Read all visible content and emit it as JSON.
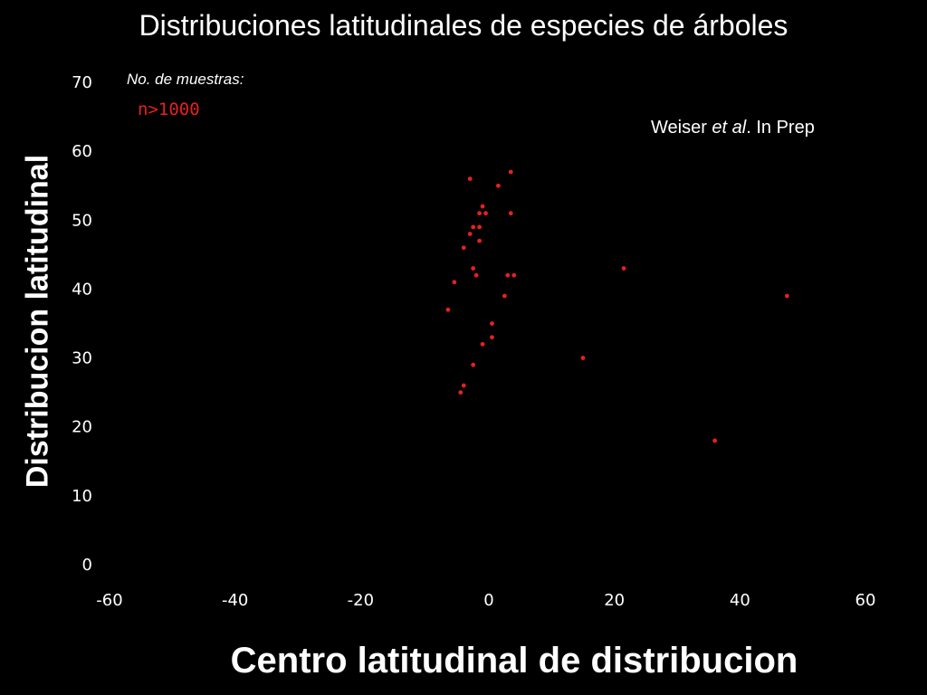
{
  "header": {
    "title": "Distribuciones latitudinales de especies de árboles"
  },
  "legend": {
    "label": "No. de muestras:",
    "value": "n>1000",
    "value_color": "#e8201e"
  },
  "attribution": {
    "prefix": "Weiser ",
    "italic": "et al",
    "suffix": ". In Prep"
  },
  "chart_data": {
    "type": "scatter",
    "title": "Distribuciones latitudinales de especies de árboles",
    "xlabel": "Centro latitudinal de distribucion",
    "ylabel": "Distribucion latitudinal",
    "xlim": [
      -60,
      60
    ],
    "ylim": [
      0,
      70
    ],
    "xticks": [
      -60,
      -40,
      -20,
      0,
      20,
      40,
      60
    ],
    "yticks": [
      0,
      10,
      20,
      30,
      40,
      50,
      60,
      70
    ],
    "grid": false,
    "point_color": "#e8201e",
    "series": [
      {
        "name": "n>1000",
        "points": [
          {
            "x": -3,
            "y": 56
          },
          {
            "x": 3.5,
            "y": 57
          },
          {
            "x": 1.5,
            "y": 55
          },
          {
            "x": -1,
            "y": 52
          },
          {
            "x": -1.5,
            "y": 51
          },
          {
            "x": -0.5,
            "y": 51
          },
          {
            "x": 3.5,
            "y": 51
          },
          {
            "x": -2.5,
            "y": 49
          },
          {
            "x": -1.5,
            "y": 49
          },
          {
            "x": -3,
            "y": 48
          },
          {
            "x": -1.5,
            "y": 47
          },
          {
            "x": -4,
            "y": 46
          },
          {
            "x": -2.5,
            "y": 43
          },
          {
            "x": -2,
            "y": 42
          },
          {
            "x": 3,
            "y": 42
          },
          {
            "x": 4,
            "y": 42
          },
          {
            "x": 21.5,
            "y": 43
          },
          {
            "x": -5.5,
            "y": 41
          },
          {
            "x": 2.5,
            "y": 39
          },
          {
            "x": 47.5,
            "y": 39
          },
          {
            "x": -6.5,
            "y": 37
          },
          {
            "x": 0.5,
            "y": 35
          },
          {
            "x": 0.5,
            "y": 33
          },
          {
            "x": -1,
            "y": 32
          },
          {
            "x": 15,
            "y": 30
          },
          {
            "x": -2.5,
            "y": 29
          },
          {
            "x": -4,
            "y": 26
          },
          {
            "x": -4.5,
            "y": 25
          },
          {
            "x": 36,
            "y": 18
          }
        ]
      }
    ]
  }
}
